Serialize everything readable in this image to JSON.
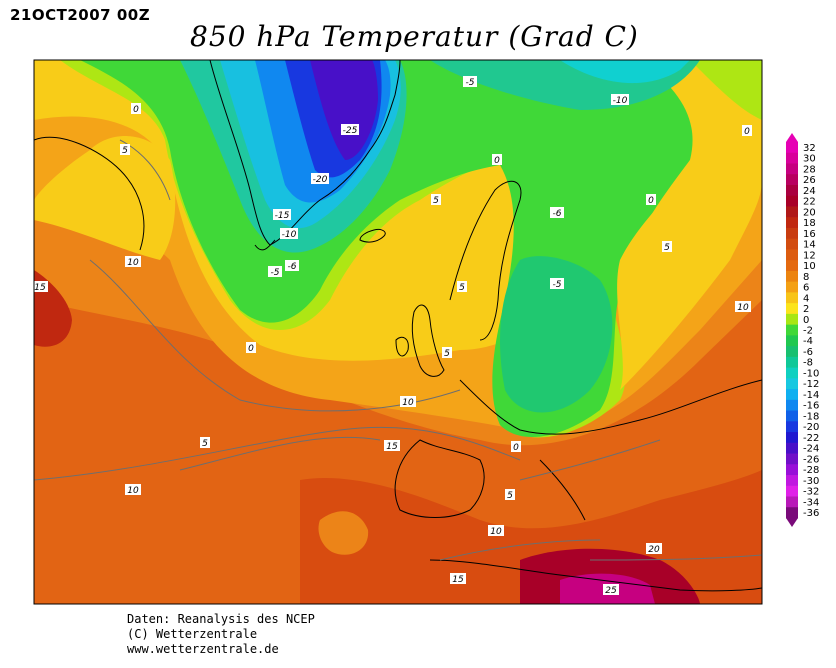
{
  "header": {
    "date_stamp": "21OCT2007 00Z",
    "title": "850 hPa Temperatur (Grad C)"
  },
  "footer": {
    "line1": "Daten: Reanalysis des NCEP",
    "line2": "(C) Wetterzentrale",
    "line3": "www.wetterzentrale.de"
  },
  "colorbar": {
    "labels": [
      "32",
      "30",
      "28",
      "26",
      "24",
      "22",
      "20",
      "18",
      "16",
      "14",
      "12",
      "10",
      "8",
      "6",
      "4",
      "2",
      "0",
      "-2",
      "-4",
      "-6",
      "-8",
      "-10",
      "-12",
      "-14",
      "-16",
      "-18",
      "-20",
      "-22",
      "-24",
      "-26",
      "-28",
      "-30",
      "-32",
      "-34",
      "-36"
    ],
    "colors": [
      "#e600b4",
      "#d8009a",
      "#c60080",
      "#b80060",
      "#aa0040",
      "#a80028",
      "#b01818",
      "#c02810",
      "#c83c10",
      "#d24c10",
      "#dc5c10",
      "#e46a10",
      "#ec8410",
      "#f4a014",
      "#f8c418",
      "#fce41c",
      "#a8e614",
      "#40d838",
      "#20c850",
      "#18c070",
      "#10c898",
      "#10d0c0",
      "#18c8e0",
      "#10b0f0",
      "#1088f0",
      "#1060e8",
      "#1838e0",
      "#2018d0",
      "#4810c8",
      "#7010c8",
      "#9810d8",
      "#c018e0",
      "#e020e8",
      "#b818b8",
      "#7a0a7a"
    ]
  },
  "contour_labels": [
    "-25",
    "-20",
    "-15",
    "-10",
    "-5",
    "-6",
    "-5",
    "-10",
    "-6",
    "-5",
    "0",
    "0",
    "0",
    "0",
    "0",
    "5",
    "5",
    "5",
    "5",
    "5",
    "5",
    "5",
    "10",
    "10",
    "10",
    "10",
    "10",
    "15",
    "15",
    "15",
    "20",
    "25",
    "0"
  ],
  "colors": {
    "warm_orange": "#e87a18",
    "cold_blue": "#1838e0"
  }
}
